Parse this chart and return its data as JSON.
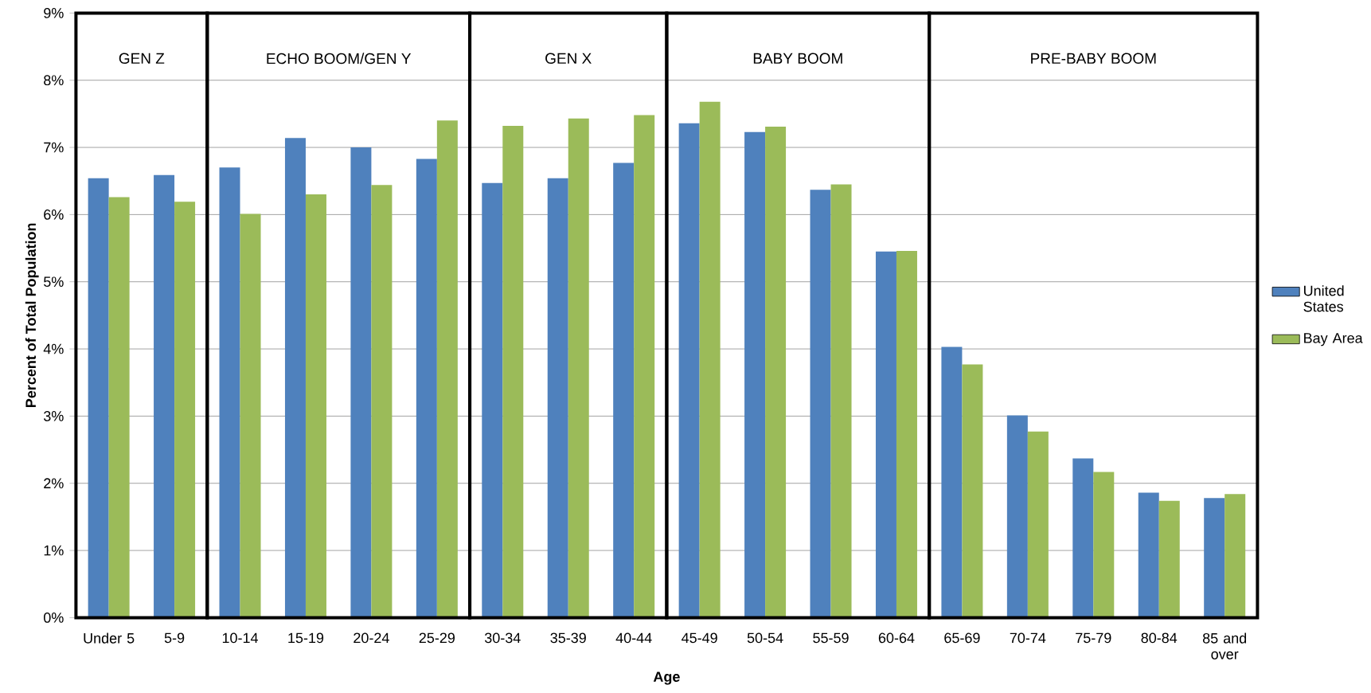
{
  "chart_data": {
    "type": "bar",
    "xlabel": "Age",
    "ylabel": "Percent of Total Population",
    "categories": [
      "Under 5",
      "5-9",
      "10-14",
      "15-19",
      "20-24",
      "25-29",
      "30-34",
      "35-39",
      "40-44",
      "45-49",
      "50-54",
      "55-59",
      "60-64",
      "65-69",
      "70-74",
      "75-79",
      "80-84",
      "85 and over"
    ],
    "series": [
      {
        "name": "United States",
        "color": "#4f81bd",
        "values": [
          6.54,
          6.59,
          6.7,
          7.14,
          7.0,
          6.83,
          6.47,
          6.54,
          6.77,
          7.36,
          7.23,
          6.37,
          5.45,
          4.03,
          3.01,
          2.37,
          1.86,
          1.78
        ]
      },
      {
        "name": "Bay Area",
        "color": "#9bbb59",
        "values": [
          6.26,
          6.19,
          6.01,
          6.3,
          6.44,
          7.4,
          7.32,
          7.43,
          7.48,
          7.68,
          7.31,
          6.45,
          5.46,
          3.77,
          2.77,
          2.17,
          1.74,
          1.84
        ]
      }
    ],
    "ylim": [
      0,
      9
    ],
    "yticks": [
      {
        "value": 0,
        "label": "0%"
      },
      {
        "value": 1,
        "label": "1%"
      },
      {
        "value": 2,
        "label": "2%"
      },
      {
        "value": 3,
        "label": "3%"
      },
      {
        "value": 4,
        "label": "4%"
      },
      {
        "value": 5,
        "label": "5%"
      },
      {
        "value": 6,
        "label": "6%"
      },
      {
        "value": 7,
        "label": "7%"
      },
      {
        "value": 8,
        "label": "8%"
      },
      {
        "value": 9,
        "label": "9%"
      }
    ],
    "annotations": [
      "GEN Z",
      "ECHO BOOM/GEN Y",
      "GEN X",
      "BABY BOOM",
      "PRE-BABY BOOM"
    ],
    "grid": "y",
    "legend": "right"
  }
}
